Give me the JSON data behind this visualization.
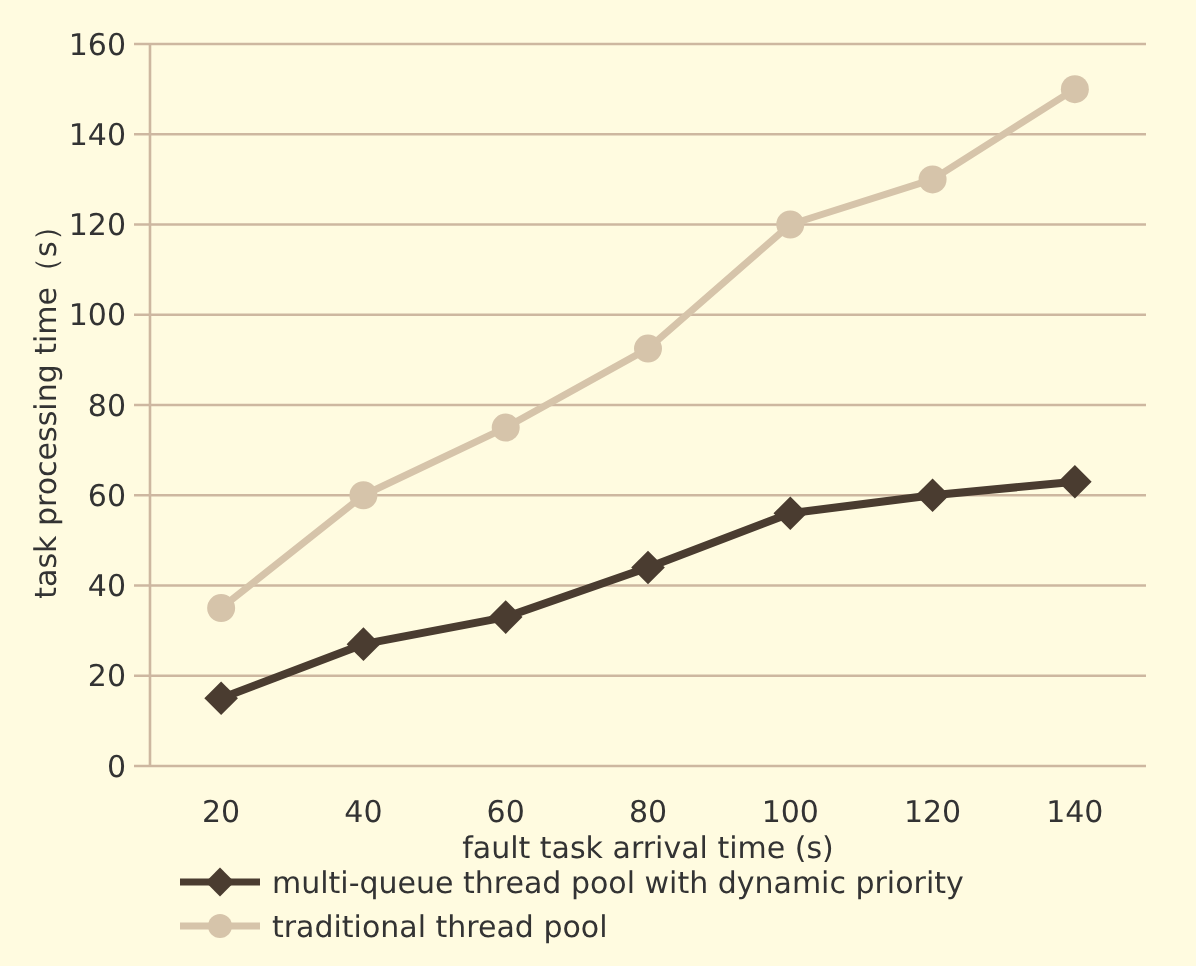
{
  "chart_data": {
    "type": "line",
    "xlabel": "fault task arrival time (s)",
    "ylabel": "task processing time（s）",
    "categories": [
      "20",
      "40",
      "60",
      "80",
      "100",
      "120",
      "140"
    ],
    "series": [
      {
        "name": "multi-queue thread pool with dynamic priority",
        "color": "#4a3c30",
        "marker": "diamond",
        "values": [
          15,
          27,
          33,
          44,
          56,
          60,
          63
        ]
      },
      {
        "name": "traditional thread pool",
        "color": "#d6c4aa",
        "marker": "circle",
        "values": [
          35,
          60,
          75,
          92.5,
          120,
          130,
          150
        ]
      }
    ],
    "ylim": [
      0,
      160
    ],
    "yticks": [
      0,
      20,
      40,
      60,
      80,
      100,
      120,
      140,
      160
    ],
    "grid": "y",
    "legend": "bottom"
  }
}
